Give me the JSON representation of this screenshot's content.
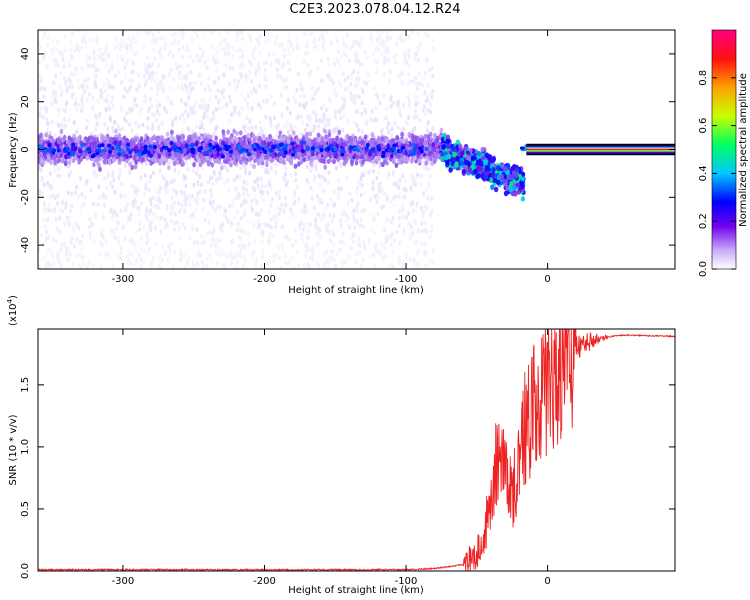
{
  "title": "C2E3.2023.078.04.12.R24",
  "colors": {
    "amplitude_scale": [
      "#ffffff",
      "#d8c8f8",
      "#a070ee",
      "#5a00ee",
      "#0000ff",
      "#00c8ff",
      "#00ff66",
      "#d8ff00",
      "#ffa000",
      "#ff1010",
      "#ff0080"
    ],
    "snr_line": "#ee2222"
  },
  "chart_data": [
    {
      "type": "heatmap",
      "xlabel": "Height of straight line (km)",
      "ylabel": "Frequency (Hz)",
      "xlim": [
        -360,
        90
      ],
      "ylim": [
        -50,
        50
      ],
      "x_ticks": [
        "-300",
        "-200",
        "-100",
        "0"
      ],
      "y_ticks": [
        "-40",
        "-20",
        "0",
        "20",
        "40"
      ],
      "colorbar": {
        "label": "Normalized spectral amplitude",
        "range": [
          0.0,
          1.0
        ],
        "ticks": [
          "0.0",
          "0.2",
          "0.4",
          "0.6",
          "0.8"
        ]
      },
      "features": [
        {
          "description": "broadband scattering",
          "x_range": [
            -360,
            -80
          ],
          "freq_range": [
            -50,
            50
          ],
          "amplitude": 0.05
        },
        {
          "description": "dense band",
          "x_range": [
            -360,
            -75
          ],
          "freq_range": [
            -8,
            8
          ],
          "amplitude": 0.15
        },
        {
          "description": "signal break-up",
          "x_range": [
            -75,
            -15
          ],
          "freq_range": [
            -25,
            8
          ],
          "amplitude": 0.35
        },
        {
          "description": "steady carrier",
          "x_range": [
            -15,
            90
          ],
          "freq_range": [
            -1,
            1
          ],
          "amplitude": 1.0
        }
      ]
    },
    {
      "type": "line",
      "xlabel": "Height of straight line (km)",
      "ylabel": "SNR (10 * v/v)",
      "scale_label": "(x10",
      "scale_exponent": "4",
      "xlim": [
        -360,
        90
      ],
      "ylim": [
        0,
        1.95
      ],
      "x_ticks": [
        "-300",
        "-200",
        "-100",
        "0"
      ],
      "y_ticks": [
        "0.0",
        "0.5",
        "1.0",
        "1.5"
      ],
      "series": [
        {
          "x": [
            -360,
            -300,
            -200,
            -100,
            -80,
            -60,
            -50,
            -40,
            -35,
            -30,
            -25,
            -20,
            -15,
            -10,
            -5,
            0,
            5,
            10,
            15,
            20,
            30,
            40,
            50,
            60,
            90
          ],
          "y": [
            0.01,
            0.01,
            0.01,
            0.01,
            0.02,
            0.05,
            0.15,
            0.5,
            1.0,
            0.8,
            0.6,
            0.9,
            1.2,
            1.3,
            1.35,
            1.45,
            1.5,
            1.65,
            1.7,
            1.78,
            1.85,
            1.88,
            1.9,
            1.9,
            1.89
          ]
        }
      ]
    }
  ]
}
